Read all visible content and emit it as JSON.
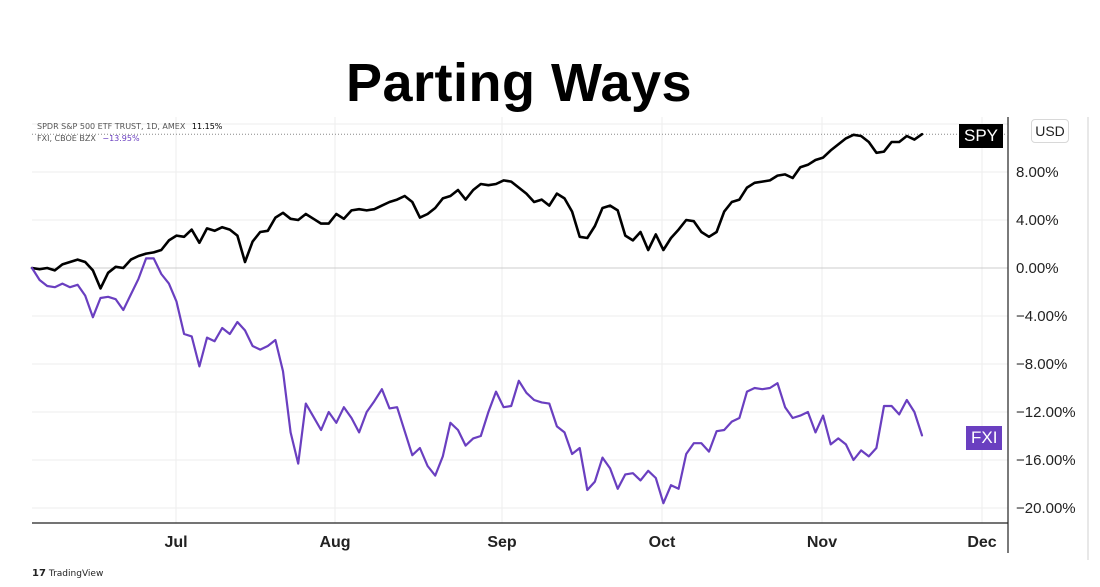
{
  "chart_data": {
    "type": "line",
    "title": "Parting Ways",
    "x_tick_labels": [
      "Jul",
      "Aug",
      "Sep",
      "Oct",
      "Nov",
      "Dec"
    ],
    "y_tick_labels": [
      "8.00%",
      "4.00%",
      "0.00%",
      "−4.00%",
      "−8.00%",
      "−12.00%",
      "−16.00%",
      "−20.00%"
    ],
    "y_tick_values": [
      8,
      4,
      0,
      -4,
      -8,
      -12,
      -16,
      -20
    ],
    "ylim": [
      -21.5,
      12.5
    ],
    "y_unit": "%",
    "grid": true,
    "series": [
      {
        "name": "SPY",
        "legend_text": "SPDR S&P 500 ETF TRUST, 1D, AMEX",
        "last_value": "11.15%",
        "tag_label": "SPY",
        "color": "#000000",
        "values": [
          0.0,
          -0.1,
          0.0,
          -0.2,
          0.3,
          0.5,
          0.7,
          0.5,
          -0.2,
          -1.7,
          -0.4,
          0.1,
          0.0,
          0.7,
          1.0,
          1.2,
          1.3,
          1.5,
          2.3,
          2.7,
          2.6,
          3.2,
          2.1,
          3.3,
          3.1,
          3.4,
          3.2,
          2.7,
          0.5,
          2.2,
          3.0,
          3.1,
          4.2,
          4.6,
          4.1,
          4.0,
          4.5,
          4.1,
          3.7,
          3.7,
          4.5,
          4.1,
          4.8,
          4.9,
          4.8,
          4.9,
          5.2,
          5.5,
          5.7,
          6.0,
          5.5,
          4.2,
          4.5,
          5.0,
          5.8,
          6.0,
          6.5,
          5.7,
          6.5,
          7.0,
          6.9,
          7.0,
          7.3,
          7.2,
          6.7,
          6.2,
          5.5,
          5.7,
          5.2,
          6.2,
          5.8,
          4.7,
          2.6,
          2.5,
          3.5,
          5.0,
          5.2,
          4.8,
          2.7,
          2.3,
          3.0,
          1.5,
          2.8,
          1.5,
          2.5,
          3.2,
          4.0,
          3.9,
          3.0,
          2.6,
          3.0,
          4.7,
          5.5,
          5.7,
          6.7,
          7.1,
          7.2,
          7.3,
          7.7,
          7.8,
          7.5,
          8.4,
          8.6,
          9.0,
          9.2,
          9.8,
          10.3,
          10.8,
          11.1,
          11.0,
          10.5,
          9.6,
          9.7,
          10.5,
          10.5,
          11.0,
          10.7,
          11.15
        ]
      },
      {
        "name": "FXI",
        "legend_text": "FXI, CBOE BZX",
        "last_value": "−13.95%",
        "tag_label": "FXI",
        "color": "#6a3fc0",
        "values": [
          0.0,
          -1.0,
          -1.5,
          -1.6,
          -1.3,
          -1.6,
          -1.4,
          -2.3,
          -4.1,
          -2.5,
          -2.4,
          -2.6,
          -3.5,
          -2.2,
          -0.9,
          0.8,
          0.8,
          -0.5,
          -1.3,
          -2.8,
          -5.5,
          -5.7,
          -8.2,
          -5.8,
          -6.1,
          -5.0,
          -5.5,
          -4.5,
          -5.2,
          -6.5,
          -6.8,
          -6.5,
          -6.0,
          -8.6,
          -13.7,
          -16.3,
          -11.3,
          -12.4,
          -13.5,
          -12.0,
          -12.9,
          -11.6,
          -12.5,
          -13.7,
          -12.0,
          -11.1,
          -10.1,
          -11.7,
          -11.6,
          -13.6,
          -15.6,
          -15.0,
          -16.5,
          -17.3,
          -15.7,
          -12.9,
          -13.5,
          -14.8,
          -14.2,
          -14.0,
          -12.0,
          -10.3,
          -11.6,
          -11.5,
          -9.4,
          -10.4,
          -11.0,
          -11.2,
          -11.3,
          -13.2,
          -13.7,
          -15.5,
          -15.0,
          -18.5,
          -17.8,
          -15.8,
          -16.7,
          -18.4,
          -17.2,
          -17.1,
          -17.7,
          -16.9,
          -17.5,
          -19.6,
          -18.1,
          -18.4,
          -15.5,
          -14.6,
          -14.6,
          -15.3,
          -13.6,
          -13.5,
          -12.8,
          -12.5,
          -10.3,
          -10.0,
          -10.1,
          -10.0,
          -9.6,
          -11.6,
          -12.5,
          -12.3,
          -12.0,
          -13.7,
          -12.3,
          -14.7,
          -14.2,
          -14.7,
          -16.0,
          -15.2,
          -15.7,
          -15.0,
          -11.5,
          -11.5,
          -12.2,
          -11.0,
          -12.0,
          -13.95
        ]
      }
    ]
  },
  "currency_label": "USD",
  "watermark": {
    "logo": "17",
    "text": "TradingView"
  },
  "colors": {
    "spy": "#000000",
    "fxi": "#6a3fc0",
    "grid": "#eeeeee",
    "axis": "#222222"
  }
}
